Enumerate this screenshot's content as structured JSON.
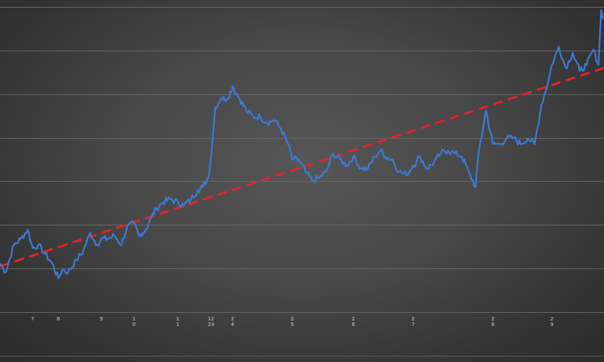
{
  "chart_data": {
    "type": "line",
    "title": "",
    "xlabel": "",
    "ylabel": "",
    "grid": "horizontal",
    "legend": "none",
    "x_tick_labels": [
      {
        "x": 47,
        "lines": [
          "7"
        ]
      },
      {
        "x": 84,
        "lines": [
          "8"
        ]
      },
      {
        "x": 146,
        "lines": [
          "9"
        ]
      },
      {
        "x": 193,
        "lines": [
          "1",
          "0"
        ]
      },
      {
        "x": 256,
        "lines": [
          "1",
          "1"
        ]
      },
      {
        "x": 304,
        "lines": [
          "12",
          "23"
        ]
      },
      {
        "x": 335,
        "lines": [
          "2",
          "4"
        ]
      },
      {
        "x": 421,
        "lines": [
          "2",
          "5"
        ]
      },
      {
        "x": 509,
        "lines": [
          "2",
          "6"
        ]
      },
      {
        "x": 595,
        "lines": [
          "2",
          "7"
        ]
      },
      {
        "x": 710,
        "lines": [
          "2",
          "8"
        ]
      },
      {
        "x": 795,
        "lines": [
          "2",
          "9"
        ]
      }
    ],
    "xlim": [
      0,
      870
    ],
    "ylim": [
      0,
      100
    ],
    "gridline_values": [
      0,
      14.3,
      28.6,
      42.9,
      57.1,
      71.4,
      85.7,
      100
    ],
    "series": [
      {
        "name": "",
        "color": "#3a7bd5",
        "x": [
          0,
          8,
          20,
          30,
          40,
          47,
          55,
          65,
          75,
          84,
          90,
          98,
          110,
          120,
          130,
          140,
          146,
          155,
          165,
          175,
          183,
          193,
          200,
          210,
          218,
          225,
          235,
          245,
          256,
          265,
          275,
          285,
          292,
          300,
          304,
          310,
          318,
          328,
          335,
          345,
          355,
          365,
          375,
          385,
          395,
          405,
          415,
          421,
          430,
          440,
          450,
          460,
          470,
          480,
          490,
          500,
          509,
          520,
          530,
          540,
          548,
          555,
          565,
          575,
          585,
          595,
          605,
          615,
          625,
          635,
          645,
          655,
          665,
          675,
          685,
          690,
          700,
          710,
          720,
          730,
          740,
          750,
          760,
          770,
          780,
          790,
          795,
          805,
          815,
          825,
          835,
          845,
          855,
          862,
          866,
          870
        ],
        "y": [
          16,
          13,
          22,
          24,
          27,
          21,
          22,
          19,
          16,
          11,
          14,
          13,
          17,
          20,
          26,
          22,
          24,
          24,
          25,
          22,
          28,
          29,
          25,
          27,
          31,
          34,
          36,
          37,
          36,
          35,
          37,
          40,
          41,
          44,
          51,
          67,
          70,
          70,
          74,
          70,
          66,
          64,
          64,
          62,
          63,
          60,
          55,
          50,
          50,
          46,
          43,
          44,
          46,
          52,
          50,
          48,
          51,
          47,
          47,
          51,
          53,
          51,
          50,
          46,
          45,
          48,
          51,
          47,
          49,
          52,
          53,
          52,
          51,
          46,
          41,
          53,
          66,
          55,
          55,
          57,
          57,
          55,
          57,
          55,
          68,
          76,
          81,
          87,
          80,
          85,
          79,
          81,
          86,
          81,
          99,
          96
        ]
      },
      {
        "name": "",
        "color": "#e0242c",
        "style": "dashed",
        "x": [
          0,
          870
        ],
        "y": [
          15,
          80
        ]
      }
    ]
  }
}
